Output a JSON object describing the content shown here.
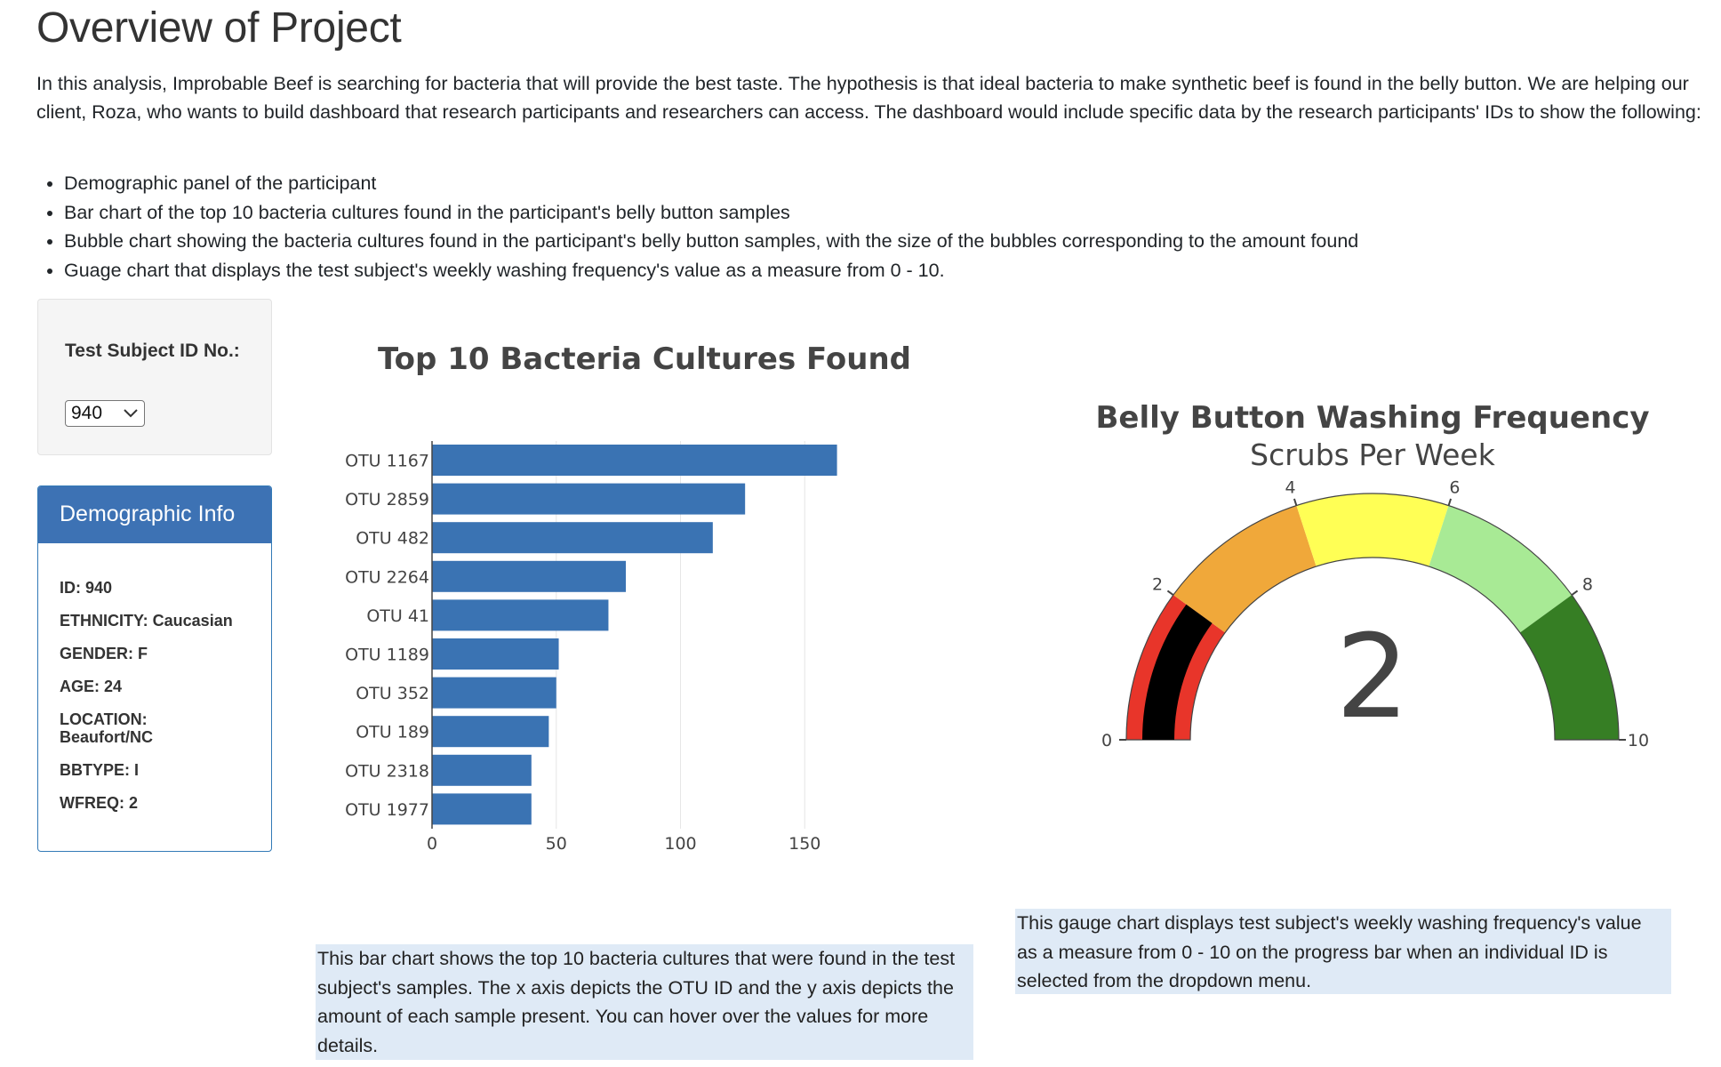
{
  "page": {
    "title": "Overview of Project",
    "intro": "In this analysis, Improbable Beef is searching for bacteria that will provide the best taste. The hypothesis is that ideal bacteria to make synthetic beef is found in the belly button. We are helping our client, Roza, who wants to build dashboard that research participants and researchers can access. The dashboard would include specific data by the research participants' IDs to show the following:",
    "bullets": [
      "Demographic panel of the participant",
      "Bar chart of the top 10 bacteria cultures found in the participant's belly button samples",
      "Bubble chart showing the bacteria cultures found in the participant's belly button samples, with the size of the bubbles corresponding to the amount found",
      "Guage chart that displays the test subject's weekly washing frequency's value as a measure from 0 - 10."
    ]
  },
  "selector": {
    "label": "Test Subject ID No.:",
    "value": "940"
  },
  "demographics": {
    "heading": "Demographic Info",
    "lines": [
      "ID: 940",
      "ETHNICITY: Caucasian",
      "GENDER: F",
      "AGE: 24",
      "LOCATION: Beaufort/NC",
      "BBTYPE: I",
      "WFREQ: 2"
    ]
  },
  "notes": {
    "bar": "This bar chart shows the top 10 bacteria cultures that were found in the test subject's samples. The x axis depicts the OTU ID and the y axis depicts the amount of each sample present. You can hover over the values for more details.",
    "gauge": "This gauge chart displays test subject's weekly washing frequency's value as a measure from 0 - 10 on the progress bar when an individual ID is selected from the dropdown menu."
  },
  "chart_data": [
    {
      "type": "bar",
      "orientation": "horizontal",
      "title": "Top 10 Bacteria Cultures Found",
      "categories": [
        "OTU 1167",
        "OTU 2859",
        "OTU 482",
        "OTU 2264",
        "OTU 41",
        "OTU 1189",
        "OTU 352",
        "OTU 189",
        "OTU 2318",
        "OTU 1977"
      ],
      "values": [
        163,
        126,
        113,
        78,
        71,
        51,
        50,
        47,
        40,
        40
      ],
      "xlim": [
        0,
        175
      ],
      "xticks": [
        0,
        50,
        100,
        150
      ],
      "grid": true,
      "color": "#3a73b3"
    },
    {
      "type": "gauge",
      "title": "Belly Button Washing Frequency",
      "subtitle": "Scrubs Per Week",
      "value": 2,
      "range": [
        0,
        10
      ],
      "ticks": [
        0,
        2,
        4,
        6,
        8,
        10
      ],
      "steps": [
        {
          "range": [
            0,
            2
          ],
          "color": "#e8352a"
        },
        {
          "range": [
            2,
            4
          ],
          "color": "#f0a83a"
        },
        {
          "range": [
            4,
            6
          ],
          "color": "#ffff55"
        },
        {
          "range": [
            6,
            8
          ],
          "color": "#a8ea95"
        },
        {
          "range": [
            8,
            10
          ],
          "color": "#367e24"
        }
      ],
      "bar_color": "#000000"
    }
  ]
}
